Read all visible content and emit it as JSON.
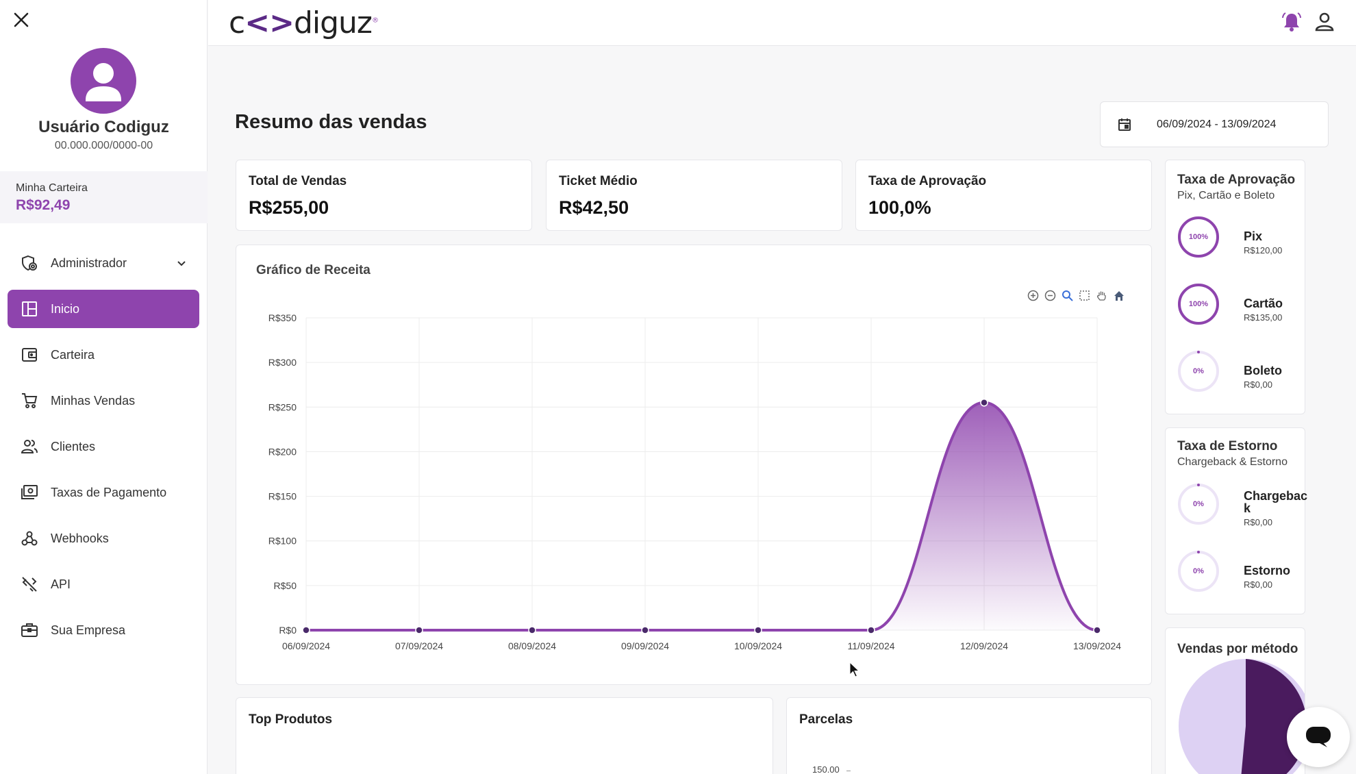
{
  "sidebar": {
    "user_name": "Usuário Codiguz",
    "user_document": "00.000.000/0000-00",
    "wallet_label": "Minha Carteira",
    "wallet_value": "R$92,49",
    "menu": [
      {
        "label": "Administrador",
        "icon": "admin-shield-icon",
        "active": false,
        "expandable": true
      },
      {
        "label": "Inicio",
        "icon": "dashboard-icon",
        "active": true
      },
      {
        "label": "Carteira",
        "icon": "wallet-icon",
        "active": false
      },
      {
        "label": "Minhas Vendas",
        "icon": "cart-icon",
        "active": false
      },
      {
        "label": "Clientes",
        "icon": "users-icon",
        "active": false
      },
      {
        "label": "Taxas de Pagamento",
        "icon": "payment-icon",
        "active": false
      },
      {
        "label": "Webhooks",
        "icon": "webhook-icon",
        "active": false
      },
      {
        "label": "API",
        "icon": "api-icon",
        "active": false
      },
      {
        "label": "Sua Empresa",
        "icon": "briefcase-icon",
        "active": false
      }
    ]
  },
  "header": {
    "logo_prefix": "c",
    "logo_mark": "<>",
    "logo_suffix": "diguz",
    "logo_reg": "®"
  },
  "main": {
    "title": "Resumo das vendas",
    "date_range": "06/09/2024 - 13/09/2024",
    "kpis": [
      {
        "label": "Total de Vendas",
        "value": "R$255,00"
      },
      {
        "label": "Ticket Médio",
        "value": "R$42,50"
      },
      {
        "label": "Taxa de Aprovação",
        "value": "100,0%"
      }
    ],
    "revenue_chart_title": "Gráfico de Receita",
    "top_products_title": "Top Produtos",
    "parcelas_title": "Parcelas",
    "parcelas_first_tick": "150.00"
  },
  "approval": {
    "title": "Taxa de Aprovação",
    "subtitle": "Pix, Cartão e Boleto",
    "items": [
      {
        "name": "Pix",
        "value": "R$120,00",
        "pct_label": "100%",
        "pct": 1.0
      },
      {
        "name": "Cartão",
        "value": "R$135,00",
        "pct_label": "100%",
        "pct": 1.0
      },
      {
        "name": "Boleto",
        "value": "R$0,00",
        "pct_label": "0%",
        "pct": 0
      }
    ]
  },
  "chargeback": {
    "title": "Taxa de Estorno",
    "subtitle": "Chargeback & Estorno",
    "items": [
      {
        "name": "Chargebac k",
        "value": "R$0,00",
        "pct_label": "0%",
        "pct": 0
      },
      {
        "name": "Estorno",
        "value": "R$0,00",
        "pct_label": "0%",
        "pct": 0
      }
    ]
  },
  "methods": {
    "title": "Vendas por método"
  },
  "colors": {
    "accent": "#8e44ad",
    "accent_dark": "#5b2a86",
    "pie_light": "#ddd1f3",
    "pie_dark": "#4a1b5e"
  },
  "chart_data": {
    "type": "area",
    "title": "Gráfico de Receita",
    "x": [
      "06/09/2024",
      "07/09/2024",
      "08/09/2024",
      "09/09/2024",
      "10/09/2024",
      "11/09/2024",
      "12/09/2024",
      "13/09/2024"
    ],
    "series": [
      {
        "values": [
          0,
          0,
          0,
          0,
          0,
          0,
          255,
          0
        ]
      }
    ],
    "y_ticks": [
      "R$0",
      "R$50",
      "R$100",
      "R$150",
      "R$200",
      "R$250",
      "R$300",
      "R$350"
    ],
    "ylim": [
      0,
      350
    ],
    "grid": true
  }
}
